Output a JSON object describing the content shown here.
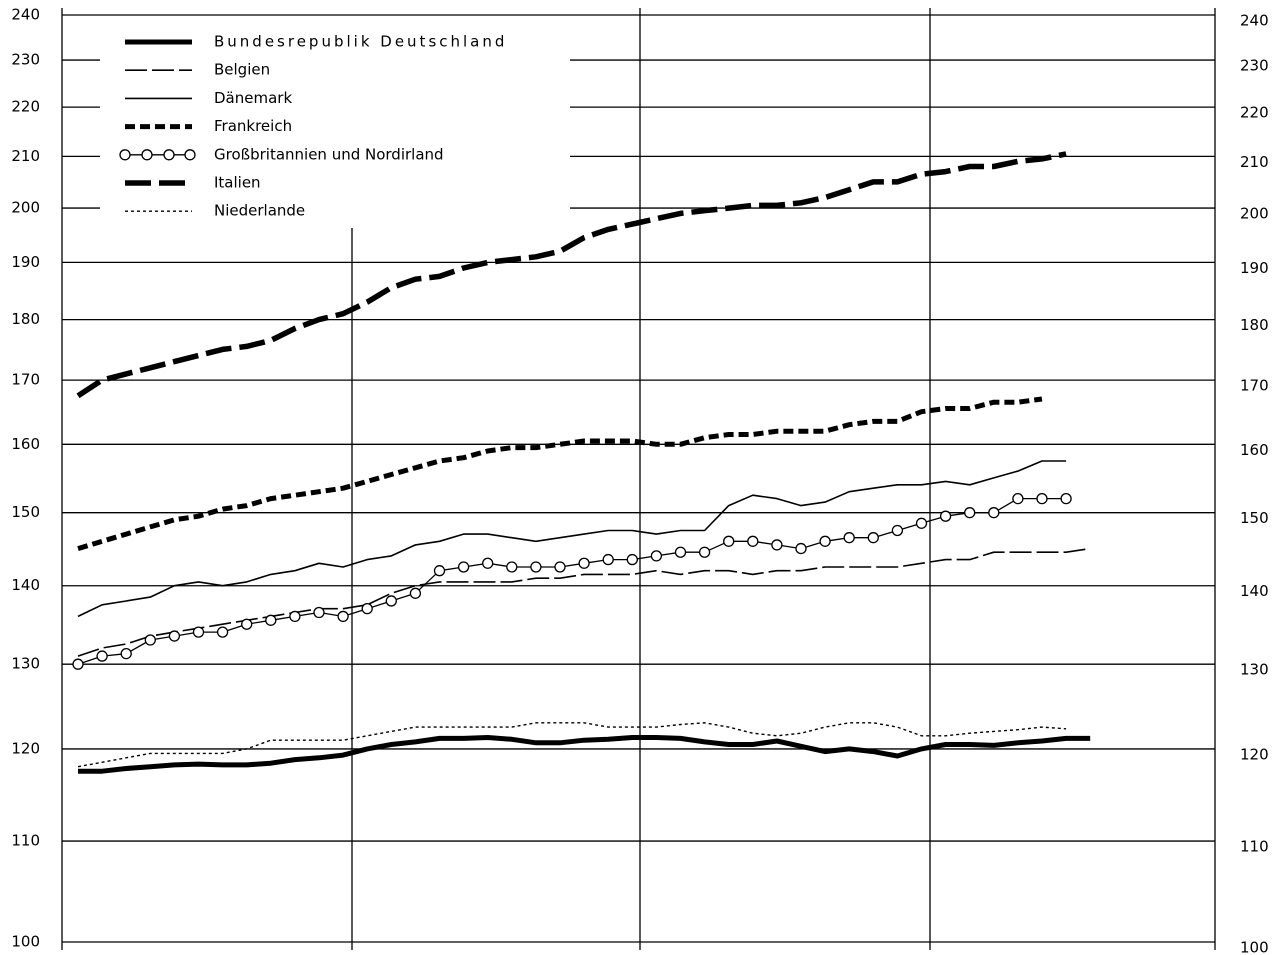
{
  "chart_data": {
    "type": "line",
    "log_scale": true,
    "grid": true,
    "legend": "top-left",
    "categories": [
      null,
      null,
      null,
      null,
      null,
      null,
      null,
      null,
      null,
      null,
      null,
      null,
      null,
      null,
      null,
      null,
      null,
      null,
      null,
      null,
      null,
      null,
      null,
      null,
      null,
      null,
      null,
      null,
      null,
      null,
      null,
      null,
      null,
      null,
      null,
      null,
      null,
      null,
      null,
      null,
      null,
      null,
      null
    ],
    "ylim": [
      100,
      240
    ],
    "yticks": [
      100,
      110,
      120,
      130,
      140,
      150,
      160,
      170,
      180,
      190,
      200,
      210,
      220,
      230,
      240
    ],
    "series": [
      {
        "name": "Bundesrepublik Deutschland",
        "color": "#000000",
        "line_style": "solid-thick",
        "values": [
          117.5,
          117.5,
          117.8,
          118,
          118.2,
          118.3,
          118.2,
          118.2,
          118.4,
          118.8,
          119,
          119.3,
          120,
          120.5,
          120.8,
          121.2,
          121.2,
          121.3,
          121.1,
          120.7,
          120.7,
          121,
          121.1,
          121.3,
          121.3,
          121.2,
          120.8,
          120.5,
          120.5,
          120.9,
          120.3,
          119.7,
          120,
          119.7,
          119.2,
          120,
          120.5,
          120.5,
          120.4,
          120.7,
          120.9,
          121.2,
          121.2
        ]
      },
      {
        "name": "Belgien",
        "color": "#000000",
        "line_style": "long-dash-thin",
        "values": [
          131,
          132,
          132.5,
          133.5,
          134,
          134.5,
          135,
          135.5,
          136,
          136.5,
          137,
          137,
          137.5,
          139,
          140,
          140.5,
          140.5,
          140.5,
          140.5,
          141,
          141,
          141.5,
          141.5,
          141.5,
          142,
          141.5,
          142,
          142,
          141.5,
          142,
          142,
          142.5,
          142.5,
          142.5,
          142.5,
          143,
          143.5,
          143.5,
          144.5,
          144.5,
          144.5,
          144.5,
          145
        ]
      },
      {
        "name": "Dänemark",
        "color": "#000000",
        "line_style": "solid-thin",
        "values": [
          136,
          137.5,
          138,
          138.5,
          140,
          140.5,
          140,
          140.5,
          141.5,
          142,
          143,
          142.5,
          143.5,
          144,
          145.5,
          146,
          147,
          147,
          146.5,
          146,
          146.5,
          147,
          147.5,
          147.5,
          147,
          147.5,
          147.5,
          151,
          152.5,
          152,
          151,
          151.5,
          153,
          153.5,
          154,
          154,
          154.5,
          154,
          155,
          156,
          157.5,
          157.5,
          null
        ]
      },
      {
        "name": "Frankreich",
        "color": "#000000",
        "line_style": "short-dash-thick",
        "values": [
          145,
          146,
          147,
          148,
          149,
          149.5,
          150.5,
          151,
          152,
          152.5,
          153,
          153.5,
          154.5,
          155.5,
          156.5,
          157.5,
          158,
          159,
          159.5,
          159.5,
          160,
          160.5,
          160.5,
          160.5,
          160,
          160,
          161,
          161.5,
          161.5,
          162,
          162,
          162,
          163,
          163.5,
          163.5,
          165,
          165.5,
          165.5,
          166.5,
          166.5,
          167,
          null,
          null
        ]
      },
      {
        "name": "Großbritannien und Nordirland",
        "color": "#000000",
        "line_style": "circles",
        "values": [
          130,
          131,
          131.3,
          133,
          133.5,
          134,
          134,
          135,
          135.5,
          136,
          136.5,
          136,
          137,
          138,
          139,
          142,
          142.5,
          143,
          142.5,
          142.5,
          142.5,
          143,
          143.5,
          143.5,
          144,
          144.5,
          144.5,
          146,
          146,
          145.5,
          145,
          146,
          146.5,
          146.5,
          147.5,
          148.5,
          149.5,
          150,
          150,
          152,
          152,
          152,
          null
        ]
      },
      {
        "name": "Italien",
        "color": "#000000",
        "line_style": "long-dash-thick",
        "values": [
          167.5,
          170,
          171,
          172,
          173,
          174,
          175,
          175.5,
          176.5,
          178.5,
          180,
          181,
          183,
          185.5,
          187,
          187.5,
          189,
          190,
          190.5,
          191,
          192,
          194.5,
          196,
          197,
          198,
          199,
          199.5,
          200,
          200.5,
          200.5,
          201,
          202,
          203.5,
          205,
          205,
          206.5,
          207,
          208,
          208,
          209,
          209.5,
          210.5,
          null
        ]
      },
      {
        "name": "Niederlande",
        "color": "#000000",
        "line_style": "dotted",
        "values": [
          118,
          118.5,
          119,
          119.5,
          119.5,
          119.5,
          119.5,
          120,
          121,
          121,
          121,
          121,
          121.5,
          122,
          122.5,
          122.5,
          122.5,
          122.5,
          122.5,
          123,
          123,
          123,
          122.5,
          122.5,
          122.5,
          122.8,
          123,
          122.5,
          121.8,
          121.5,
          121.8,
          122.5,
          123,
          123,
          122.5,
          121.5,
          121.5,
          121.8,
          122,
          122.2,
          122.5,
          122.3,
          null
        ]
      }
    ]
  }
}
